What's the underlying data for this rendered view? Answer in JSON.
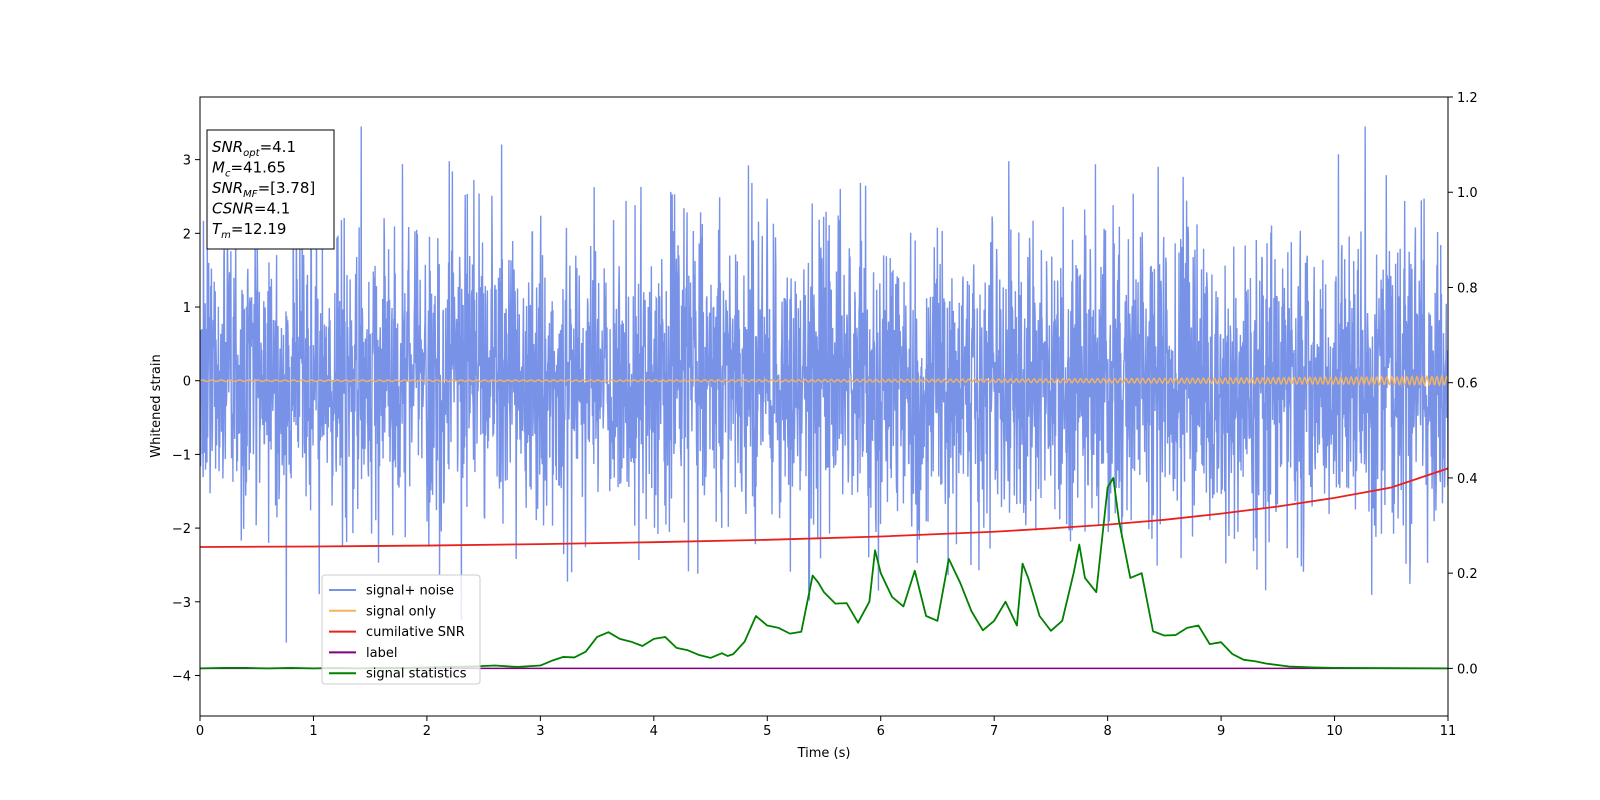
{
  "chart_data": {
    "type": "line",
    "xlabel": "Time (s)",
    "ylabel": "Whitened strain",
    "xlim": [
      0,
      11
    ],
    "ylim_left": [
      -4.55,
      3.85
    ],
    "ylim_right": [
      -0.1,
      1.2
    ],
    "x_ticks": [
      "0",
      "1",
      "2",
      "3",
      "4",
      "5",
      "6",
      "7",
      "8",
      "9",
      "10",
      "11"
    ],
    "y_left_ticks": [
      "−4",
      "−3",
      "−2",
      "−1",
      "0",
      "1",
      "2",
      "3"
    ],
    "y_right_ticks": [
      "0.0",
      "0.2",
      "0.4",
      "0.6",
      "0.8",
      "1.0",
      "1.2"
    ],
    "grid": false,
    "legend_placement": "lower-left",
    "annotation": {
      "lines": [
        {
          "sym": "SNR",
          "sub": "opt",
          "eq": "=4.1"
        },
        {
          "sym": "M",
          "sub": "c",
          "eq": "=41.65"
        },
        {
          "sym": "SNR",
          "sub": "MF",
          "eq": "=[3.78]"
        },
        {
          "sym": "CSNR",
          "sub": "",
          "eq": "=4.1"
        },
        {
          "sym": "T",
          "sub": "m",
          "eq": "=12.19"
        }
      ]
    },
    "series": [
      {
        "name": "signal+ noise",
        "color": "#7892e8",
        "axis": "left",
        "description_stats": {
          "mean": 0.0,
          "std": 1.0,
          "min": -4.15,
          "max": 3.45
        }
      },
      {
        "name": "signal only",
        "color": "#f5b45c",
        "axis": "left",
        "x_start": 0,
        "x_end": 11,
        "amplitude_start": 0.01,
        "amplitude_end": 0.06
      },
      {
        "name": "cumilative SNR",
        "color": "#e8211f",
        "axis": "right",
        "x": [
          0,
          1,
          2,
          3,
          4,
          5,
          6,
          7,
          7.5,
          8,
          8.5,
          9,
          9.5,
          10,
          10.5,
          11
        ],
        "values": [
          0.255,
          0.256,
          0.258,
          0.261,
          0.265,
          0.27,
          0.277,
          0.287,
          0.294,
          0.302,
          0.312,
          0.325,
          0.34,
          0.358,
          0.38,
          0.42
        ]
      },
      {
        "name": "label",
        "color": "#800080",
        "axis": "right",
        "x": [
          0,
          11
        ],
        "values": [
          0.0,
          0.0
        ]
      },
      {
        "name": "signal statistics",
        "color": "#008000",
        "axis": "right",
        "x": [
          0,
          0.2,
          0.4,
          0.6,
          0.8,
          1.0,
          1.2,
          1.4,
          1.6,
          1.8,
          2.0,
          2.2,
          2.4,
          2.6,
          2.8,
          3.0,
          3.1,
          3.2,
          3.3,
          3.4,
          3.5,
          3.6,
          3.7,
          3.8,
          3.9,
          4.0,
          4.1,
          4.2,
          4.3,
          4.4,
          4.5,
          4.6,
          4.65,
          4.7,
          4.8,
          4.9,
          5.0,
          5.1,
          5.2,
          5.3,
          5.4,
          5.45,
          5.5,
          5.6,
          5.7,
          5.8,
          5.9,
          5.95,
          6.0,
          6.1,
          6.2,
          6.3,
          6.4,
          6.5,
          6.55,
          6.6,
          6.7,
          6.8,
          6.9,
          7.0,
          7.1,
          7.2,
          7.25,
          7.3,
          7.4,
          7.5,
          7.6,
          7.7,
          7.75,
          7.8,
          7.9,
          8.0,
          8.05,
          8.1,
          8.2,
          8.3,
          8.4,
          8.5,
          8.6,
          8.7,
          8.8,
          8.9,
          9.0,
          9.1,
          9.2,
          9.3,
          9.4,
          9.6,
          9.8,
          10.0,
          11.0
        ],
        "values": [
          0.0,
          0.001,
          0.001,
          0.0,
          0.001,
          0.0,
          0.001,
          0.0,
          0.001,
          0.001,
          0.002,
          0.003,
          0.004,
          0.006,
          0.003,
          0.006,
          0.016,
          0.024,
          0.023,
          0.035,
          0.066,
          0.076,
          0.062,
          0.056,
          0.047,
          0.062,
          0.066,
          0.043,
          0.038,
          0.028,
          0.022,
          0.032,
          0.026,
          0.03,
          0.056,
          0.11,
          0.09,
          0.085,
          0.073,
          0.077,
          0.195,
          0.18,
          0.16,
          0.136,
          0.137,
          0.096,
          0.14,
          0.248,
          0.2,
          0.15,
          0.13,
          0.205,
          0.11,
          0.1,
          0.165,
          0.23,
          0.18,
          0.12,
          0.08,
          0.1,
          0.14,
          0.09,
          0.22,
          0.19,
          0.11,
          0.079,
          0.1,
          0.2,
          0.26,
          0.19,
          0.16,
          0.38,
          0.4,
          0.31,
          0.19,
          0.2,
          0.078,
          0.069,
          0.07,
          0.085,
          0.09,
          0.051,
          0.055,
          0.03,
          0.018,
          0.015,
          0.01,
          0.004,
          0.002,
          0.001,
          0.0
        ]
      }
    ]
  }
}
